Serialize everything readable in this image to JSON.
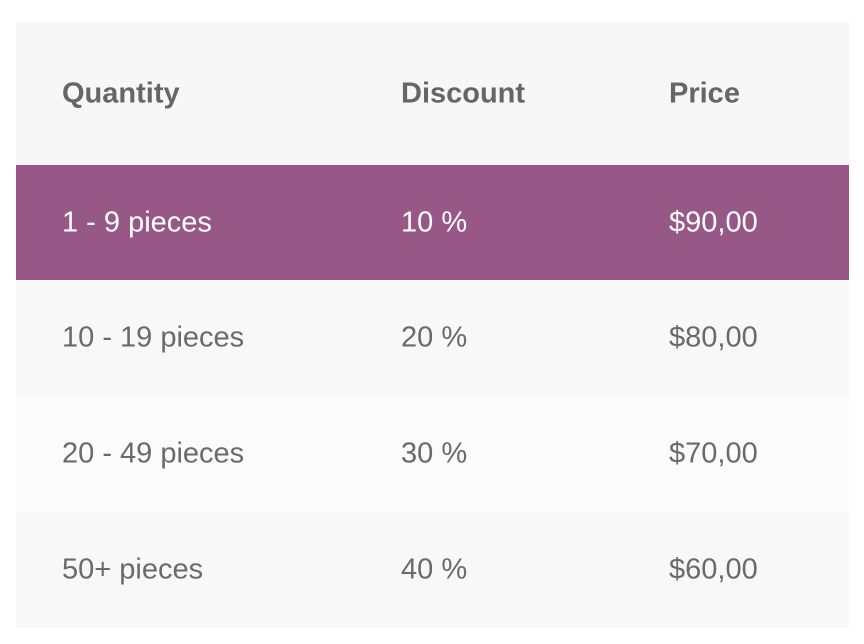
{
  "pricing_table": {
    "headers": {
      "quantity": "Quantity",
      "discount": "Discount",
      "price": "Price"
    },
    "rows": [
      {
        "quantity": "1 - 9 pieces",
        "discount": "10 %",
        "price": "$90,00",
        "highlighted": true
      },
      {
        "quantity": "10 - 19 pieces",
        "discount": "20 %",
        "price": "$80,00",
        "highlighted": false
      },
      {
        "quantity": "20 - 49 pieces",
        "discount": "30 %",
        "price": "$70,00",
        "highlighted": false
      },
      {
        "quantity": "50+ pieces",
        "discount": "40 %",
        "price": "$60,00",
        "highlighted": false
      }
    ]
  },
  "colors": {
    "highlight_background": "#985887",
    "highlight_text": "#ffffff",
    "table_background": "#f8f8f8",
    "text": "#6a6a6a"
  }
}
